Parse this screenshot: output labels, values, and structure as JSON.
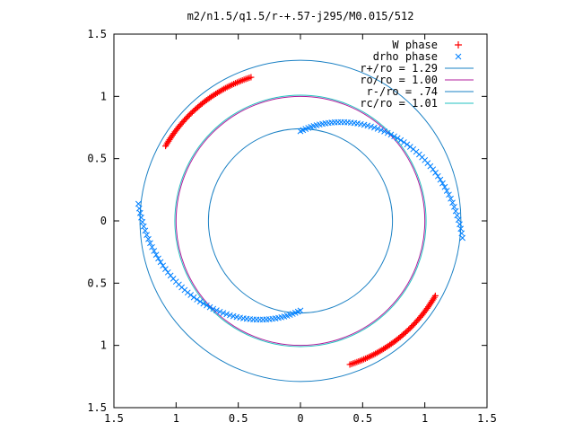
{
  "chart_data": {
    "type": "scatter",
    "title": "m2/n1.5/q1.5/r-+.57-j295/M0.015/512",
    "xlabel": "",
    "ylabel": "",
    "xlim": [
      -1.5,
      1.5
    ],
    "ylim": [
      -1.5,
      1.5
    ],
    "x_ticks": [
      -1.5,
      -1,
      -0.5,
      0,
      0.5,
      1,
      1.5
    ],
    "y_ticks": [
      -1.5,
      -1,
      -0.5,
      0,
      0.5,
      1,
      1.5
    ],
    "x_tick_labels": [
      "1.5",
      "1",
      "0.5",
      "0",
      "0.5",
      "1",
      "1.5"
    ],
    "y_tick_labels": [
      "1.5",
      "1",
      "0.5",
      "0",
      "0.5",
      "1",
      "1.5"
    ],
    "grid": false,
    "legend_position": "top-right",
    "series": [
      {
        "name": "W phase",
        "marker": "plus",
        "color": "#ff0000",
        "arcs": [
          {
            "r": [
              1.24,
              1.22
            ],
            "theta": [
              151,
              109
            ]
          },
          {
            "r": [
              1.24,
              1.22
            ],
            "theta": [
              -29,
              -71
            ]
          }
        ]
      },
      {
        "name": "drho phase",
        "marker": "cross",
        "color": "#0080ff",
        "arcs": [
          {
            "r": [
              0.72,
              1.31
            ],
            "theta": [
              90,
              -6
            ]
          },
          {
            "r": [
              0.72,
              1.31
            ],
            "theta": [
              -90,
              -186
            ]
          }
        ]
      }
    ],
    "circles": [
      {
        "name": "r+/ro = 1.29",
        "radius": 1.29,
        "color": "#1a80c4"
      },
      {
        "name": "ro/ro = 1.00",
        "radius": 1.0,
        "color": "#b01c9c"
      },
      {
        "name": "r-/ro = .74",
        "radius": 0.74,
        "color": "#1a80c4"
      },
      {
        "name": "rc/ro = 1.01",
        "radius": 1.01,
        "color": "#22c0c0"
      }
    ]
  }
}
